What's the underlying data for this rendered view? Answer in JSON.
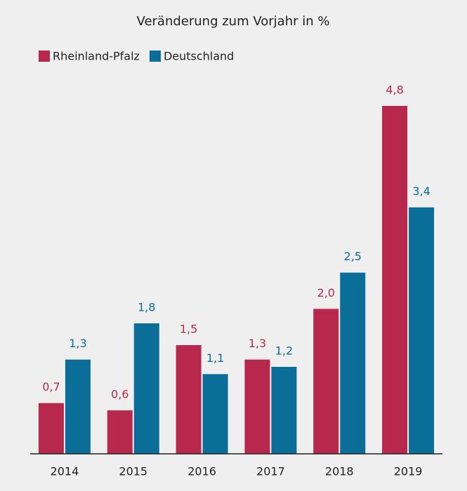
{
  "chart_data": {
    "type": "bar",
    "title": "Veränderung zum Vorjahr in %",
    "categories": [
      "2014",
      "2015",
      "2016",
      "2017",
      "2018",
      "2019"
    ],
    "series": [
      {
        "name": "Rheinland-Pfalz",
        "color": "#b8284c",
        "values": [
          0.7,
          0.6,
          1.5,
          1.3,
          2.0,
          4.8
        ],
        "value_labels": [
          "0,7",
          "0,6",
          "1,5",
          "1,3",
          "2,0",
          "4,8"
        ]
      },
      {
        "name": "Deutschland",
        "color": "#0b6e99",
        "values": [
          1.3,
          1.8,
          1.1,
          1.2,
          2.5,
          3.4
        ],
        "value_labels": [
          "1,3",
          "1,8",
          "1,1",
          "1,2",
          "2,5",
          "3,4"
        ]
      }
    ],
    "legend": "top-left"
  }
}
